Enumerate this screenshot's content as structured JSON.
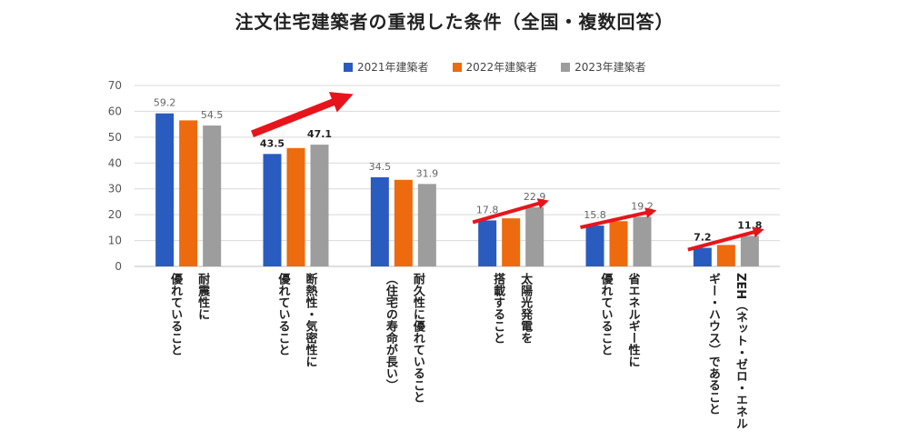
{
  "title": "注文住宅建築者の重視した条件（全国・複数回答）",
  "colors": {
    "s2021": "#2a5bbf",
    "s2022": "#ee6a0e",
    "s2023": "#9d9d9d",
    "arrow": "#e8141b",
    "grid": "#d9d9d9"
  },
  "chart_data": {
    "type": "bar",
    "title": "注文住宅建築者の重視した条件（全国・複数回答）",
    "ylim": [
      0,
      70
    ],
    "yticks": [
      "0",
      "10",
      "20",
      "30",
      "40",
      "50",
      "60",
      "70"
    ],
    "grid": true,
    "legend": "top",
    "categories": [
      "耐震性に\n優れていること",
      "断熱性・気密性に\n優れていること",
      "耐久性に優れていること\n（住宅の寿命が長い）",
      "太陽光発電を\n搭載すること",
      "省エネルギー性に\n優れていること",
      "ZEH（ネット・ゼロ・エネル\nギー・ハウス）であること"
    ],
    "series": [
      {
        "name": "2021年建築者",
        "values": [
          59.2,
          43.5,
          34.5,
          17.8,
          15.8,
          7.2
        ]
      },
      {
        "name": "2022年建築者",
        "values": [
          56.5,
          45.8,
          33.5,
          18.6,
          17.5,
          8.3
        ]
      },
      {
        "name": "2023年建築者",
        "values": [
          54.5,
          47.1,
          31.9,
          22.9,
          19.2,
          11.8
        ]
      }
    ],
    "data_labels": [
      {
        "first": "59.2",
        "last": "54.5",
        "bold": false
      },
      {
        "first": "43.5",
        "last": "47.1",
        "bold": true
      },
      {
        "first": "34.5",
        "last": "31.9",
        "bold": false
      },
      {
        "first": "17.8",
        "last": "22.9",
        "bold": false
      },
      {
        "first": "15.8",
        "last": "19.2",
        "bold": false
      },
      {
        "first": "7.2",
        "last": "11.8",
        "bold": true
      }
    ]
  }
}
